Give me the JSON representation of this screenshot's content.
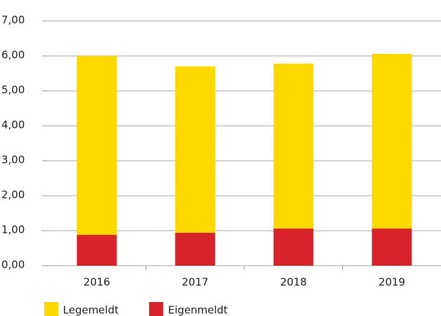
{
  "chart_data": {
    "type": "stacked-bar",
    "categories": [
      "2016",
      "2017",
      "2018",
      "2019"
    ],
    "series": [
      {
        "name": "Eigenmeldt",
        "color": "#d8232a",
        "values": [
          0.88,
          0.94,
          1.06,
          1.06
        ]
      },
      {
        "name": "Legemeldt",
        "color": "#ffd800",
        "values": [
          5.12,
          4.76,
          4.72,
          5.0
        ]
      }
    ],
    "legend_order": [
      "Legemeldt",
      "Eigenmeldt"
    ],
    "ylim": [
      0,
      7
    ],
    "yticks": [
      {
        "value": 0,
        "label": "0,00"
      },
      {
        "value": 1,
        "label": "1,00"
      },
      {
        "value": 2,
        "label": "2,00"
      },
      {
        "value": 3,
        "label": "3,00"
      },
      {
        "value": 4,
        "label": "4,00"
      },
      {
        "value": 5,
        "label": "5,00"
      },
      {
        "value": 6,
        "label": "6,00"
      },
      {
        "value": 7,
        "label": "7,00"
      }
    ],
    "grid": true
  }
}
